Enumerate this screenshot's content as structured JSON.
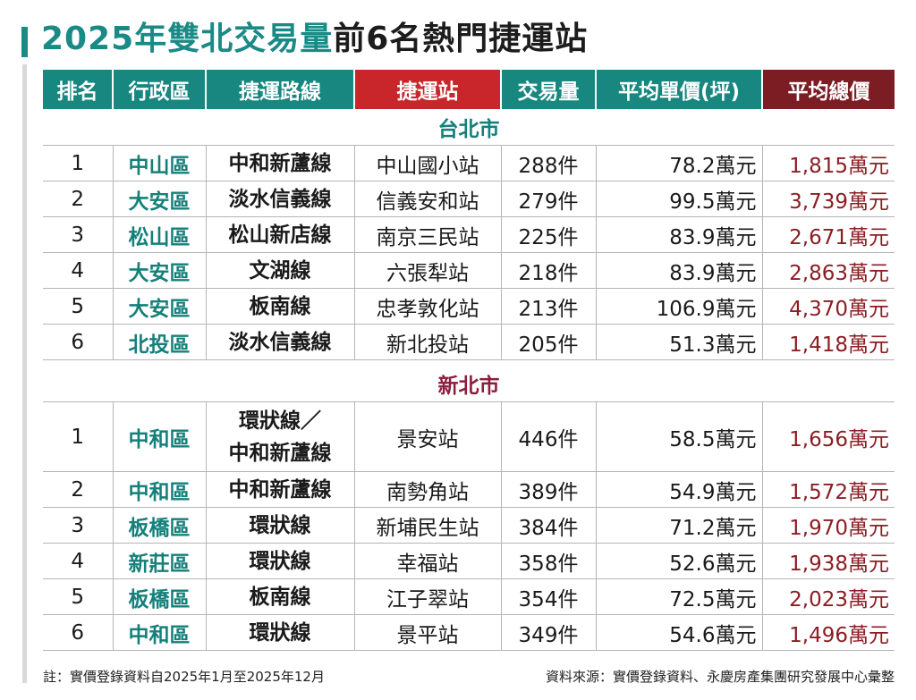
{
  "title": {
    "highlight": "2025年雙北交易量",
    "rest": "前6名熱門捷運站"
  },
  "headers": [
    "排名",
    "行政區",
    "捷運路線",
    "捷運站",
    "交易量",
    "平均單價(坪)",
    "平均總價"
  ],
  "colors": {
    "teal": "#17877f",
    "red": "#c8262b",
    "maroon": "#7c1c23",
    "district_text": "#15807a",
    "total_text": "#8b1e24"
  },
  "sections": [
    {
      "name": "台北市",
      "rows": [
        {
          "rank": "1",
          "district": "中山區",
          "line": "中和新蘆線",
          "station": "中山國小站",
          "volume": "288件",
          "unit_price": "78.2萬元",
          "total_price": "1,815萬元"
        },
        {
          "rank": "2",
          "district": "大安區",
          "line": "淡水信義線",
          "station": "信義安和站",
          "volume": "279件",
          "unit_price": "99.5萬元",
          "total_price": "3,739萬元"
        },
        {
          "rank": "3",
          "district": "松山區",
          "line": "松山新店線",
          "station": "南京三民站",
          "volume": "225件",
          "unit_price": "83.9萬元",
          "total_price": "2,671萬元"
        },
        {
          "rank": "4",
          "district": "大安區",
          "line": "文湖線",
          "station": "六張犁站",
          "volume": "218件",
          "unit_price": "83.9萬元",
          "total_price": "2,863萬元"
        },
        {
          "rank": "5",
          "district": "大安區",
          "line": "板南線",
          "station": "忠孝敦化站",
          "volume": "213件",
          "unit_price": "106.9萬元",
          "total_price": "4,370萬元"
        },
        {
          "rank": "6",
          "district": "北投區",
          "line": "淡水信義線",
          "station": "新北投站",
          "volume": "205件",
          "unit_price": "51.3萬元",
          "total_price": "1,418萬元"
        }
      ]
    },
    {
      "name": "新北市",
      "rows": [
        {
          "rank": "1",
          "district": "中和區",
          "line": "環狀線／\n中和新蘆線",
          "station": "景安站",
          "volume": "446件",
          "unit_price": "58.5萬元",
          "total_price": "1,656萬元"
        },
        {
          "rank": "2",
          "district": "中和區",
          "line": "中和新蘆線",
          "station": "南勢角站",
          "volume": "389件",
          "unit_price": "54.9萬元",
          "total_price": "1,572萬元"
        },
        {
          "rank": "3",
          "district": "板橋區",
          "line": "環狀線",
          "station": "新埔民生站",
          "volume": "384件",
          "unit_price": "71.2萬元",
          "total_price": "1,970萬元"
        },
        {
          "rank": "4",
          "district": "新莊區",
          "line": "環狀線",
          "station": "幸福站",
          "volume": "358件",
          "unit_price": "52.6萬元",
          "total_price": "1,938萬元"
        },
        {
          "rank": "5",
          "district": "板橋區",
          "line": "板南線",
          "station": "江子翠站",
          "volume": "354件",
          "unit_price": "72.5萬元",
          "total_price": "2,023萬元"
        },
        {
          "rank": "6",
          "district": "中和區",
          "line": "環狀線",
          "station": "景平站",
          "volume": "349件",
          "unit_price": "54.6萬元",
          "total_price": "1,496萬元"
        }
      ]
    }
  ],
  "footer": {
    "note": "註：實價登錄資料自2025年1月至2025年12月",
    "source": "資料來源：實價登錄資料、永慶房產集團研究發展中心彙整"
  },
  "chart_data": {
    "type": "table",
    "title": "2025年雙北交易量前6名熱門捷運站",
    "columns": [
      "排名",
      "行政區",
      "捷運路線",
      "捷運站",
      "交易量",
      "平均單價(坪)",
      "平均總價"
    ],
    "groups": [
      {
        "name": "台北市",
        "rows": [
          [
            1,
            "中山區",
            "中和新蘆線",
            "中山國小站",
            288,
            78.2,
            1815
          ],
          [
            2,
            "大安區",
            "淡水信義線",
            "信義安和站",
            279,
            99.5,
            3739
          ],
          [
            3,
            "松山區",
            "松山新店線",
            "南京三民站",
            225,
            83.9,
            2671
          ],
          [
            4,
            "大安區",
            "文湖線",
            "六張犁站",
            218,
            83.9,
            2863
          ],
          [
            5,
            "大安區",
            "板南線",
            "忠孝敦化站",
            213,
            106.9,
            4370
          ],
          [
            6,
            "北投區",
            "淡水信義線",
            "新北投站",
            205,
            51.3,
            1418
          ]
        ]
      },
      {
        "name": "新北市",
        "rows": [
          [
            1,
            "中和區",
            "環狀線／中和新蘆線",
            "景安站",
            446,
            58.5,
            1656
          ],
          [
            2,
            "中和區",
            "中和新蘆線",
            "南勢角站",
            389,
            54.9,
            1572
          ],
          [
            3,
            "板橋區",
            "環狀線",
            "新埔民生站",
            384,
            71.2,
            1970
          ],
          [
            4,
            "新莊區",
            "環狀線",
            "幸福站",
            358,
            52.6,
            1938
          ],
          [
            5,
            "板橋區",
            "板南線",
            "江子翠站",
            354,
            72.5,
            2023
          ],
          [
            6,
            "中和區",
            "環狀線",
            "景平站",
            349,
            54.6,
            1496
          ]
        ]
      }
    ]
  }
}
